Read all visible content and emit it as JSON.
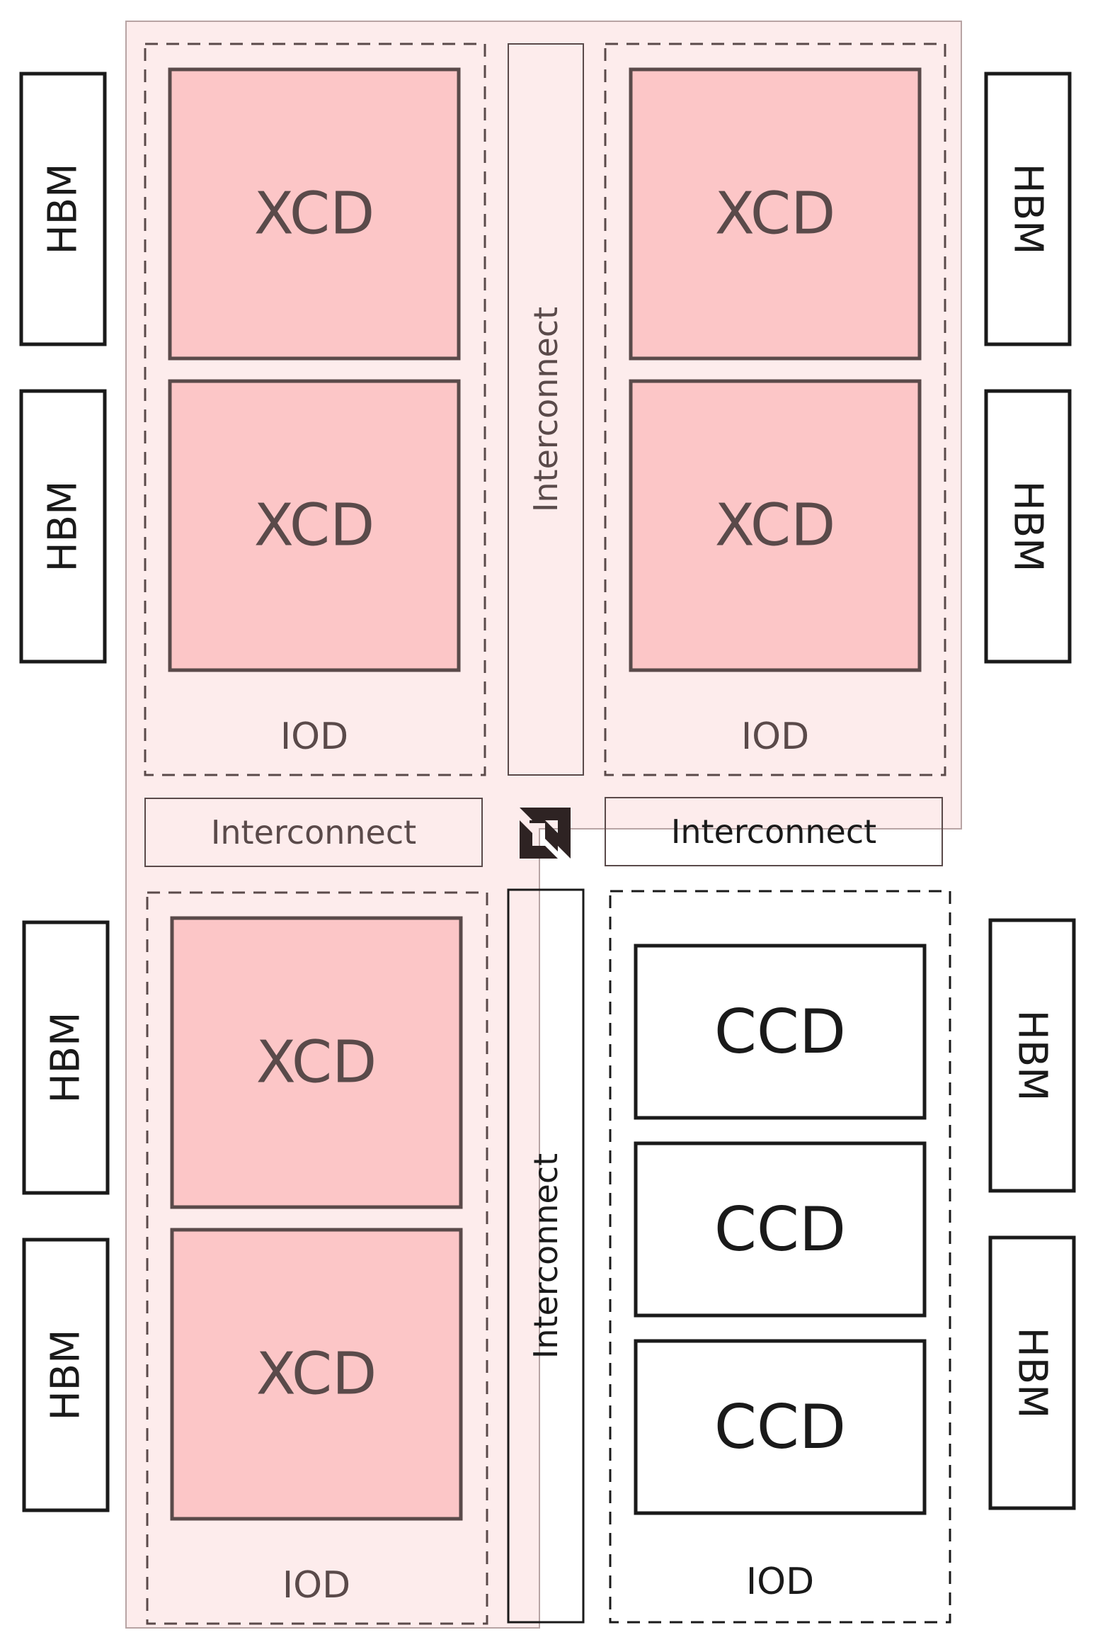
{
  "labels": {
    "xcd": "XCD",
    "ccd": "CCD",
    "iod": "IOD",
    "interconnect": "Interconnect",
    "hbm": "HBM"
  },
  "logo": "amd-arrow-logo",
  "colors": {
    "highlight_region": "#fdecec",
    "xcd_fill": "#fcc6c7",
    "highlighted_stroke": "#5a4a4a",
    "plain_stroke": "#1a1a1a",
    "plain_fill": "#ffffff"
  }
}
